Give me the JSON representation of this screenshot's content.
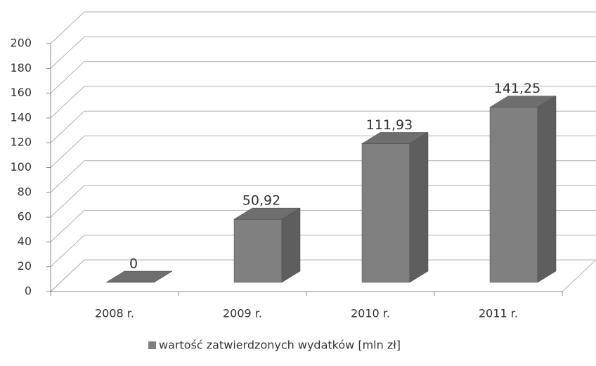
{
  "chart_data": {
    "type": "bar",
    "categories": [
      "2008 r.",
      "2009 r.",
      "2010 r.",
      "2011 r."
    ],
    "series": [
      {
        "name": "wartość zatwierdzonych wydatków [mln zł]",
        "color": "#808080",
        "values": [
          0,
          50.92,
          111.93,
          141.25
        ],
        "value_labels": [
          "0",
          "50,92",
          "111,93",
          "141,25"
        ]
      }
    ],
    "ylim": [
      0,
      200
    ],
    "yticks": [
      0,
      20,
      40,
      60,
      80,
      100,
      120,
      140,
      160,
      180,
      200
    ],
    "grid": true,
    "legend": "bottom"
  }
}
